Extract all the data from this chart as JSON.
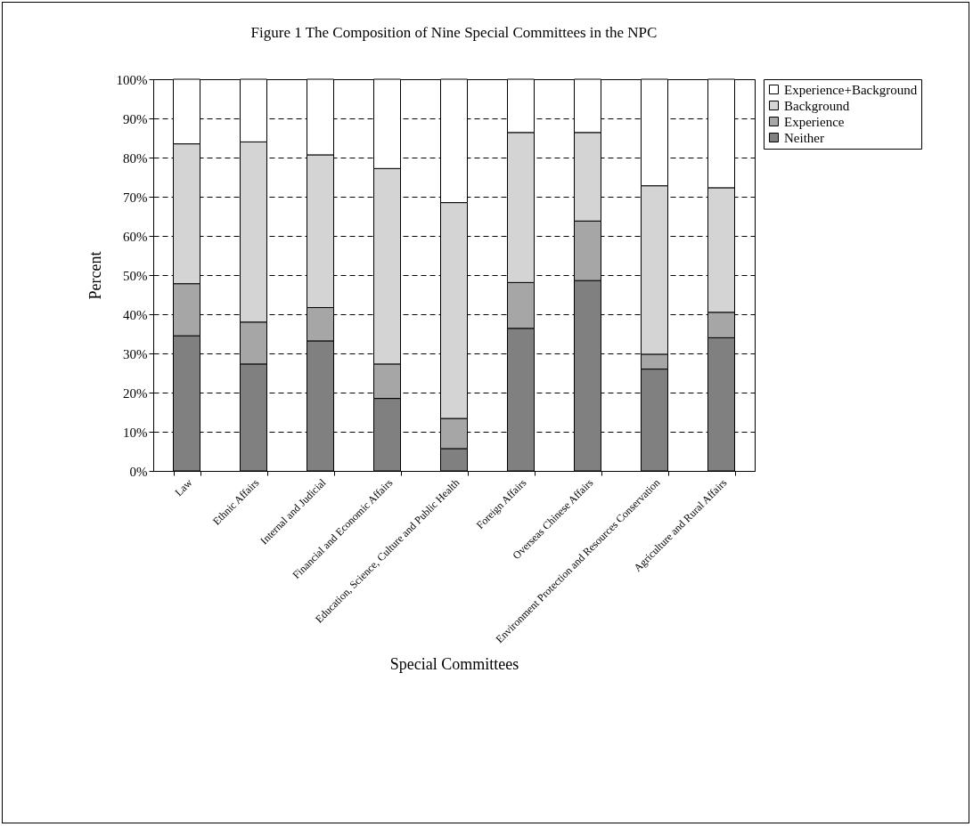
{
  "chart_data": {
    "type": "bar",
    "title": "Figure 1 The Composition of Nine Special Committees in the NPC",
    "xlabel": "Special Committees",
    "ylabel": "Percent",
    "categories": [
      "Law",
      "Ethnic Affairs",
      "Internal and Judicial",
      "Financial and Economic Affairs",
      "Education, Science, Culture and Public Health",
      "Foreign Affairs",
      "Overseas Chinese Affairs",
      "Environment Protection and Resources Conservation",
      "Agriculture and Rural Affairs"
    ],
    "stacked": true,
    "series": [
      {
        "name": "Neither",
        "color": "#808080",
        "values": [
          34.5,
          27.3,
          33.2,
          18.5,
          5.7,
          36.4,
          48.6,
          26,
          34
        ]
      },
      {
        "name": "Experience",
        "color": "#a6a6a6",
        "values": [
          13.3,
          10.7,
          8.5,
          8.8,
          7.7,
          11.7,
          15.2,
          3.8,
          6.5
        ]
      },
      {
        "name": "Background",
        "color": "#d4d4d4",
        "values": [
          35.7,
          46,
          39,
          49.9,
          55.1,
          38.3,
          22.6,
          43,
          31.8
        ]
      },
      {
        "name": "Experience+Background",
        "color": "#ffffff",
        "values": [
          16.5,
          16,
          19.3,
          22.8,
          31.5,
          13.6,
          13.6,
          27.2,
          27.7
        ]
      }
    ],
    "ylim": [
      0,
      100
    ],
    "yticks": [
      {
        "value": 0,
        "label": "0%"
      },
      {
        "value": 10,
        "label": "10%"
      },
      {
        "value": 20,
        "label": "20%"
      },
      {
        "value": 30,
        "label": "30%"
      },
      {
        "value": 40,
        "label": "40%"
      },
      {
        "value": 50,
        "label": "50%"
      },
      {
        "value": 60,
        "label": "60%"
      },
      {
        "value": 70,
        "label": "70%"
      },
      {
        "value": 80,
        "label": "80%"
      },
      {
        "value": 90,
        "label": "90%"
      },
      {
        "value": 100,
        "label": "100%"
      }
    ],
    "grid": "y",
    "legend": "right"
  }
}
